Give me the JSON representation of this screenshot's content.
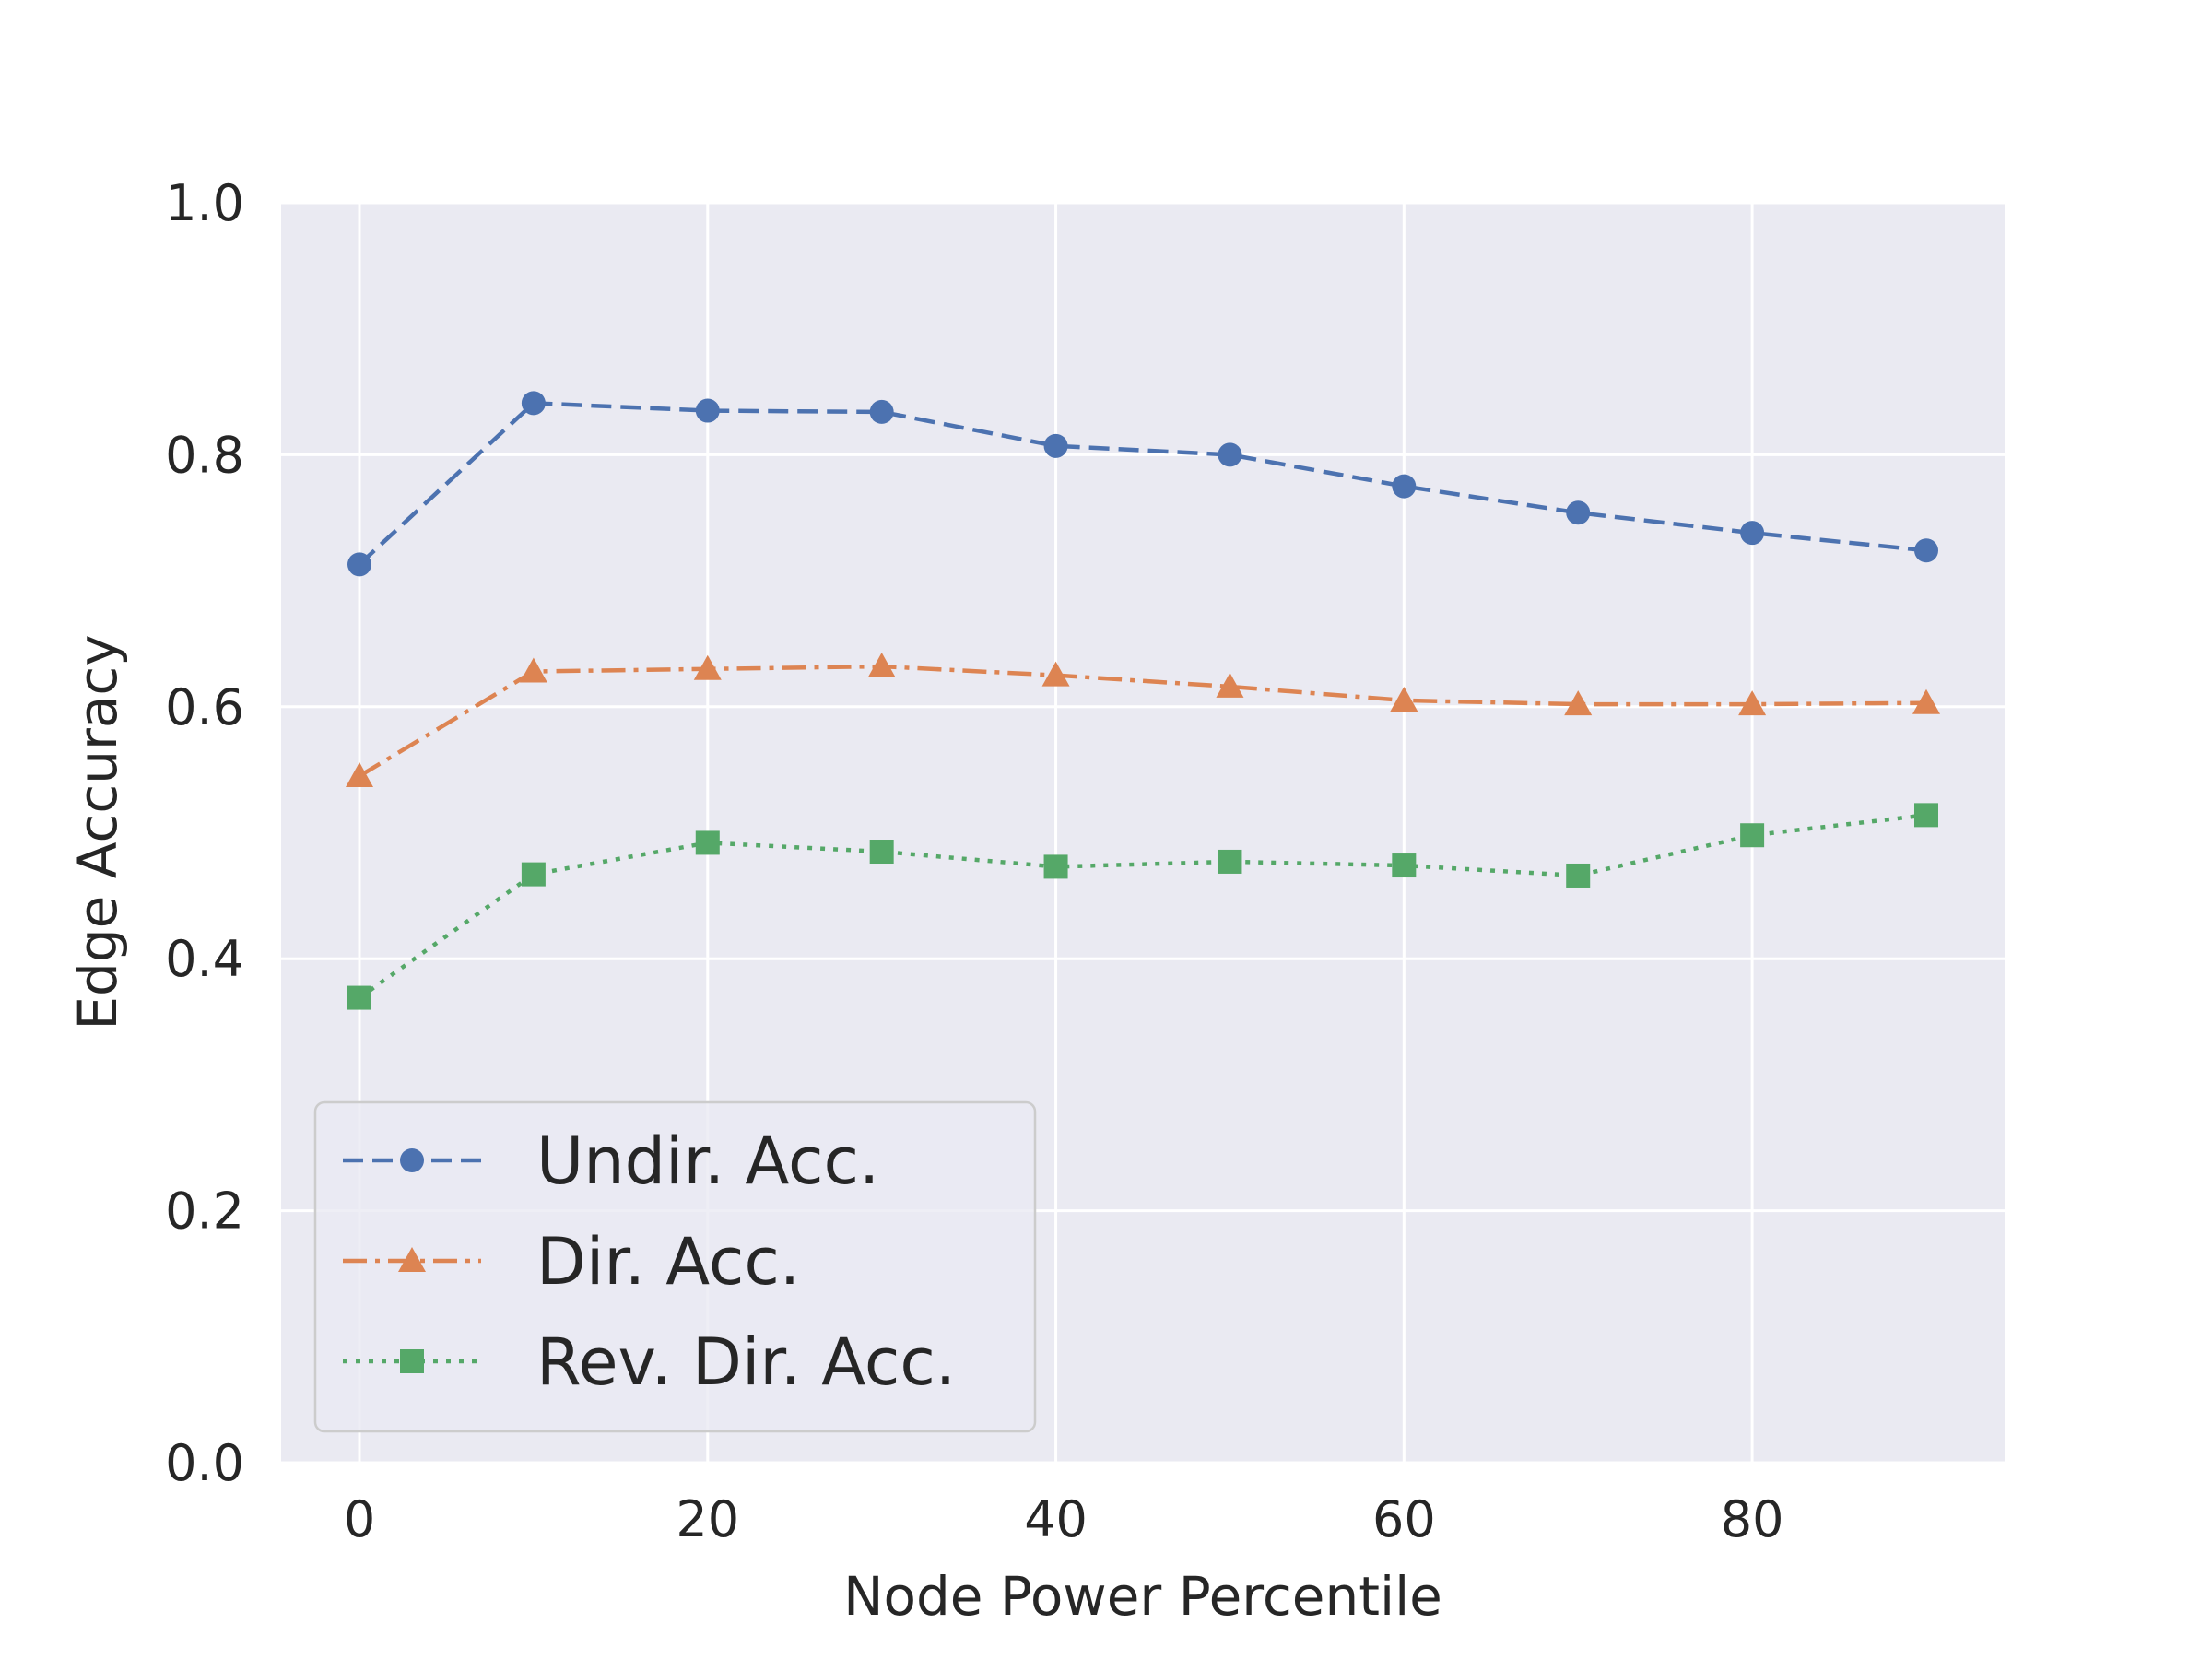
{
  "chart_data": {
    "type": "line",
    "title": "",
    "xlabel": "Node Power Percentile",
    "ylabel": "Edge Accuracy",
    "x": [
      0,
      10,
      20,
      30,
      40,
      50,
      60,
      70,
      80,
      90
    ],
    "xlim": [
      -4.5,
      94.5
    ],
    "ylim": [
      0.0,
      1.0
    ],
    "xticks": [
      0,
      20,
      40,
      60,
      80
    ],
    "yticks": [
      0.0,
      0.2,
      0.4,
      0.6,
      0.8,
      1.0
    ],
    "xtick_labels": [
      "0",
      "20",
      "40",
      "60",
      "80"
    ],
    "ytick_labels": [
      "0.0",
      "0.2",
      "0.4",
      "0.6",
      "0.8",
      "1.0"
    ],
    "grid": true,
    "legend_position": "lower-left",
    "series": [
      {
        "name": "Undir. Acc.",
        "color": "#4c72b0",
        "marker": "circle",
        "linestyle": "dashed",
        "values": [
          0.713,
          0.841,
          0.835,
          0.834,
          0.807,
          0.8,
          0.775,
          0.754,
          0.738,
          0.724
        ]
      },
      {
        "name": "Dir. Acc.",
        "color": "#dd8452",
        "marker": "triangle",
        "linestyle": "dashdot",
        "values": [
          0.545,
          0.628,
          0.63,
          0.632,
          0.625,
          0.616,
          0.605,
          0.602,
          0.602,
          0.603
        ]
      },
      {
        "name": "Rev. Dir. Acc.",
        "color": "#55a868",
        "marker": "square",
        "linestyle": "dotted",
        "values": [
          0.369,
          0.467,
          0.492,
          0.485,
          0.473,
          0.477,
          0.474,
          0.466,
          0.498,
          0.514
        ]
      }
    ]
  }
}
